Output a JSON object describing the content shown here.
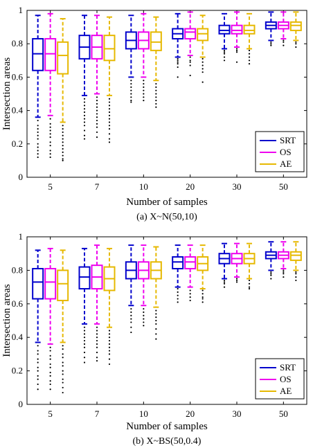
{
  "chart_data": [
    {
      "type": "box",
      "caption": "(a)  X~N(50,10)",
      "xlabel": "Number of samples",
      "ylabel": "Intersection areas",
      "categories": [
        "5",
        "7",
        "10",
        "20",
        "30",
        "50"
      ],
      "ylim": [
        0,
        1
      ],
      "yticks": [
        "0",
        "0.2",
        "0.4",
        "0.6",
        "0.8",
        "1"
      ],
      "ytick_values": [
        0,
        0.2,
        0.4,
        0.6,
        0.8,
        1
      ],
      "legend_position": "bottom-right",
      "series": [
        {
          "name": "SRT",
          "color": "#0000cc",
          "boxes": [
            {
              "whisker_low": 0.36,
              "q1": 0.64,
              "median": 0.74,
              "q3": 0.83,
              "whisker_high": 0.97,
              "outliers": [
                0.34,
                0.31,
                0.29,
                0.27,
                0.25,
                0.23,
                0.2,
                0.18,
                0.16,
                0.14,
                0.12
              ]
            },
            {
              "whisker_low": 0.49,
              "q1": 0.71,
              "median": 0.78,
              "q3": 0.85,
              "whisker_high": 0.97,
              "outliers": [
                0.47,
                0.45,
                0.43,
                0.41,
                0.39,
                0.37,
                0.35,
                0.33,
                0.31,
                0.28,
                0.25,
                0.23
              ]
            },
            {
              "whisker_low": 0.6,
              "q1": 0.77,
              "median": 0.82,
              "q3": 0.87,
              "whisker_high": 0.97,
              "outliers": [
                0.58,
                0.56,
                0.54,
                0.52,
                0.5,
                0.48,
                0.46,
                0.45
              ]
            },
            {
              "whisker_low": 0.72,
              "q1": 0.83,
              "median": 0.86,
              "q3": 0.89,
              "whisker_high": 0.98,
              "outliers": [
                0.71,
                0.7,
                0.69,
                0.68,
                0.66,
                0.6
              ]
            },
            {
              "whisker_low": 0.77,
              "q1": 0.86,
              "median": 0.88,
              "q3": 0.91,
              "whisker_high": 0.98,
              "outliers": [
                0.76,
                0.75,
                0.74,
                0.72,
                0.7
              ]
            },
            {
              "whisker_low": 0.82,
              "q1": 0.89,
              "median": 0.91,
              "q3": 0.93,
              "whisker_high": 0.99,
              "outliers": [
                0.81,
                0.8,
                0.79
              ]
            }
          ]
        },
        {
          "name": "OS",
          "color": "#ee00ee",
          "boxes": [
            {
              "whisker_low": 0.37,
              "q1": 0.64,
              "median": 0.74,
              "q3": 0.83,
              "whisker_high": 0.98,
              "outliers": [
                0.35,
                0.32,
                0.3,
                0.28,
                0.26,
                0.24,
                0.21,
                0.19,
                0.16,
                0.14,
                0.12
              ]
            },
            {
              "whisker_low": 0.5,
              "q1": 0.71,
              "median": 0.78,
              "q3": 0.85,
              "whisker_high": 0.97,
              "outliers": [
                0.48,
                0.46,
                0.44,
                0.42,
                0.4,
                0.38,
                0.36,
                0.34,
                0.32,
                0.3,
                0.27,
                0.24
              ]
            },
            {
              "whisker_low": 0.6,
              "q1": 0.77,
              "median": 0.82,
              "q3": 0.87,
              "whisker_high": 0.98,
              "outliers": [
                0.58,
                0.56,
                0.54,
                0.52,
                0.5,
                0.48,
                0.46
              ]
            },
            {
              "whisker_low": 0.73,
              "q1": 0.83,
              "median": 0.87,
              "q3": 0.89,
              "whisker_high": 0.99,
              "outliers": [
                0.72,
                0.7,
                0.69,
                0.67,
                0.61
              ]
            },
            {
              "whisker_low": 0.78,
              "q1": 0.86,
              "median": 0.88,
              "q3": 0.91,
              "whisker_high": 0.99,
              "outliers": [
                0.77,
                0.76,
                0.75,
                0.69
              ]
            },
            {
              "whisker_low": 0.83,
              "q1": 0.89,
              "median": 0.91,
              "q3": 0.93,
              "whisker_high": 0.99,
              "outliers": [
                0.82,
                0.81,
                0.79
              ]
            }
          ]
        },
        {
          "name": "AE",
          "color": "#e6b800",
          "boxes": [
            {
              "whisker_low": 0.33,
              "q1": 0.62,
              "median": 0.73,
              "q3": 0.81,
              "whisker_high": 0.95,
              "outliers": [
                0.31,
                0.29,
                0.27,
                0.25,
                0.23,
                0.21,
                0.19,
                0.17,
                0.15,
                0.13,
                0.11,
                0.1
              ]
            },
            {
              "whisker_low": 0.49,
              "q1": 0.7,
              "median": 0.77,
              "q3": 0.85,
              "whisker_high": 0.96,
              "outliers": [
                0.47,
                0.45,
                0.43,
                0.41,
                0.39,
                0.37,
                0.35,
                0.33,
                0.31,
                0.29,
                0.26,
                0.23,
                0.21
              ]
            },
            {
              "whisker_low": 0.58,
              "q1": 0.76,
              "median": 0.81,
              "q3": 0.87,
              "whisker_high": 0.96,
              "outliers": [
                0.56,
                0.54,
                0.52,
                0.5,
                0.48,
                0.46,
                0.44,
                0.42
              ]
            },
            {
              "whisker_low": 0.72,
              "q1": 0.82,
              "median": 0.86,
              "q3": 0.89,
              "whisker_high": 0.97,
              "outliers": [
                0.71,
                0.69,
                0.67,
                0.65,
                0.63,
                0.57
              ]
            },
            {
              "whisker_low": 0.77,
              "q1": 0.86,
              "median": 0.88,
              "q3": 0.91,
              "whisker_high": 0.98,
              "outliers": [
                0.76,
                0.74,
                0.72,
                0.7,
                0.68
              ]
            },
            {
              "whisker_low": 0.82,
              "q1": 0.88,
              "median": 0.91,
              "q3": 0.93,
              "whisker_high": 0.99,
              "outliers": [
                0.81,
                0.8,
                0.78
              ]
            }
          ]
        }
      ]
    },
    {
      "type": "box",
      "caption": "(b)  X~BS(50,0.4)",
      "xlabel": "Number of samples",
      "ylabel": "Intersection areas",
      "categories": [
        "5",
        "7",
        "10",
        "20",
        "30",
        "50"
      ],
      "ylim": [
        0,
        1
      ],
      "yticks": [
        "0",
        "0.2",
        "0.4",
        "0.6",
        "0.8",
        "1"
      ],
      "ytick_values": [
        0,
        0.2,
        0.4,
        0.6,
        0.8,
        1
      ],
      "legend_position": "bottom-right",
      "series": [
        {
          "name": "SRT",
          "color": "#0000cc",
          "boxes": [
            {
              "whisker_low": 0.37,
              "q1": 0.63,
              "median": 0.73,
              "q3": 0.81,
              "whisker_high": 0.92,
              "outliers": [
                0.35,
                0.32,
                0.3,
                0.27,
                0.25,
                0.22,
                0.2,
                0.17,
                0.15,
                0.12,
                0.09
              ]
            },
            {
              "whisker_low": 0.48,
              "q1": 0.69,
              "median": 0.76,
              "q3": 0.82,
              "whisker_high": 0.93,
              "outliers": [
                0.46,
                0.44,
                0.42,
                0.4,
                0.38,
                0.36,
                0.34,
                0.31,
                0.28,
                0.25
              ]
            },
            {
              "whisker_low": 0.59,
              "q1": 0.75,
              "median": 0.8,
              "q3": 0.85,
              "whisker_high": 0.95,
              "outliers": [
                0.57,
                0.55,
                0.53,
                0.51,
                0.49,
                0.46,
                0.43
              ]
            },
            {
              "whisker_low": 0.7,
              "q1": 0.81,
              "median": 0.85,
              "q3": 0.88,
              "whisker_high": 0.95,
              "outliers": [
                0.69,
                0.67,
                0.65,
                0.63,
                0.61
              ]
            },
            {
              "whisker_low": 0.75,
              "q1": 0.84,
              "median": 0.87,
              "q3": 0.9,
              "whisker_high": 0.96,
              "outliers": [
                0.74,
                0.73,
                0.72,
                0.7
              ]
            },
            {
              "whisker_low": 0.8,
              "q1": 0.87,
              "median": 0.89,
              "q3": 0.91,
              "whisker_high": 0.97,
              "outliers": [
                0.79,
                0.78,
                0.77,
                0.75
              ]
            }
          ]
        },
        {
          "name": "OS",
          "color": "#ee00ee",
          "boxes": [
            {
              "whisker_low": 0.36,
              "q1": 0.63,
              "median": 0.73,
              "q3": 0.81,
              "whisker_high": 0.93,
              "outliers": [
                0.34,
                0.32,
                0.29,
                0.27,
                0.24,
                0.22,
                0.19,
                0.17,
                0.14,
                0.12,
                0.09
              ]
            },
            {
              "whisker_low": 0.48,
              "q1": 0.69,
              "median": 0.76,
              "q3": 0.83,
              "whisker_high": 0.95,
              "outliers": [
                0.46,
                0.44,
                0.42,
                0.4,
                0.38,
                0.36,
                0.34,
                0.31,
                0.28,
                0.26
              ]
            },
            {
              "whisker_low": 0.59,
              "q1": 0.75,
              "median": 0.8,
              "q3": 0.85,
              "whisker_high": 0.95,
              "outliers": [
                0.57,
                0.55,
                0.53,
                0.51,
                0.49,
                0.47
              ]
            },
            {
              "whisker_low": 0.7,
              "q1": 0.81,
              "median": 0.85,
              "q3": 0.88,
              "whisker_high": 0.95,
              "outliers": [
                0.68,
                0.66,
                0.64,
                0.62
              ]
            },
            {
              "whisker_low": 0.76,
              "q1": 0.84,
              "median": 0.87,
              "q3": 0.9,
              "whisker_high": 0.96,
              "outliers": [
                0.75,
                0.74,
                0.73
              ]
            },
            {
              "whisker_low": 0.81,
              "q1": 0.87,
              "median": 0.89,
              "q3": 0.91,
              "whisker_high": 0.97,
              "outliers": [
                0.8,
                0.79,
                0.78,
                0.76
              ]
            }
          ]
        },
        {
          "name": "AE",
          "color": "#e6b800",
          "boxes": [
            {
              "whisker_low": 0.37,
              "q1": 0.62,
              "median": 0.72,
              "q3": 0.8,
              "whisker_high": 0.92,
              "outliers": [
                0.35,
                0.33,
                0.3,
                0.28,
                0.25,
                0.23,
                0.2,
                0.18,
                0.15,
                0.13,
                0.1,
                0.07
              ]
            },
            {
              "whisker_low": 0.46,
              "q1": 0.68,
              "median": 0.75,
              "q3": 0.82,
              "whisker_high": 0.93,
              "outliers": [
                0.44,
                0.42,
                0.4,
                0.38,
                0.36,
                0.34,
                0.32,
                0.3,
                0.27,
                0.24
              ]
            },
            {
              "whisker_low": 0.58,
              "q1": 0.75,
              "median": 0.8,
              "q3": 0.85,
              "whisker_high": 0.94,
              "outliers": [
                0.56,
                0.54,
                0.52,
                0.5,
                0.48,
                0.45,
                0.42,
                0.39
              ]
            },
            {
              "whisker_low": 0.69,
              "q1": 0.8,
              "median": 0.84,
              "q3": 0.88,
              "whisker_high": 0.95,
              "outliers": [
                0.68,
                0.66,
                0.64,
                0.63,
                0.61
              ]
            },
            {
              "whisker_low": 0.75,
              "q1": 0.84,
              "median": 0.87,
              "q3": 0.9,
              "whisker_high": 0.96,
              "outliers": [
                0.74,
                0.72,
                0.7,
                0.69
              ]
            },
            {
              "whisker_low": 0.8,
              "q1": 0.86,
              "median": 0.89,
              "q3": 0.91,
              "whisker_high": 0.97,
              "outliers": [
                0.79,
                0.78,
                0.76,
                0.74
              ]
            }
          ]
        }
      ]
    }
  ]
}
